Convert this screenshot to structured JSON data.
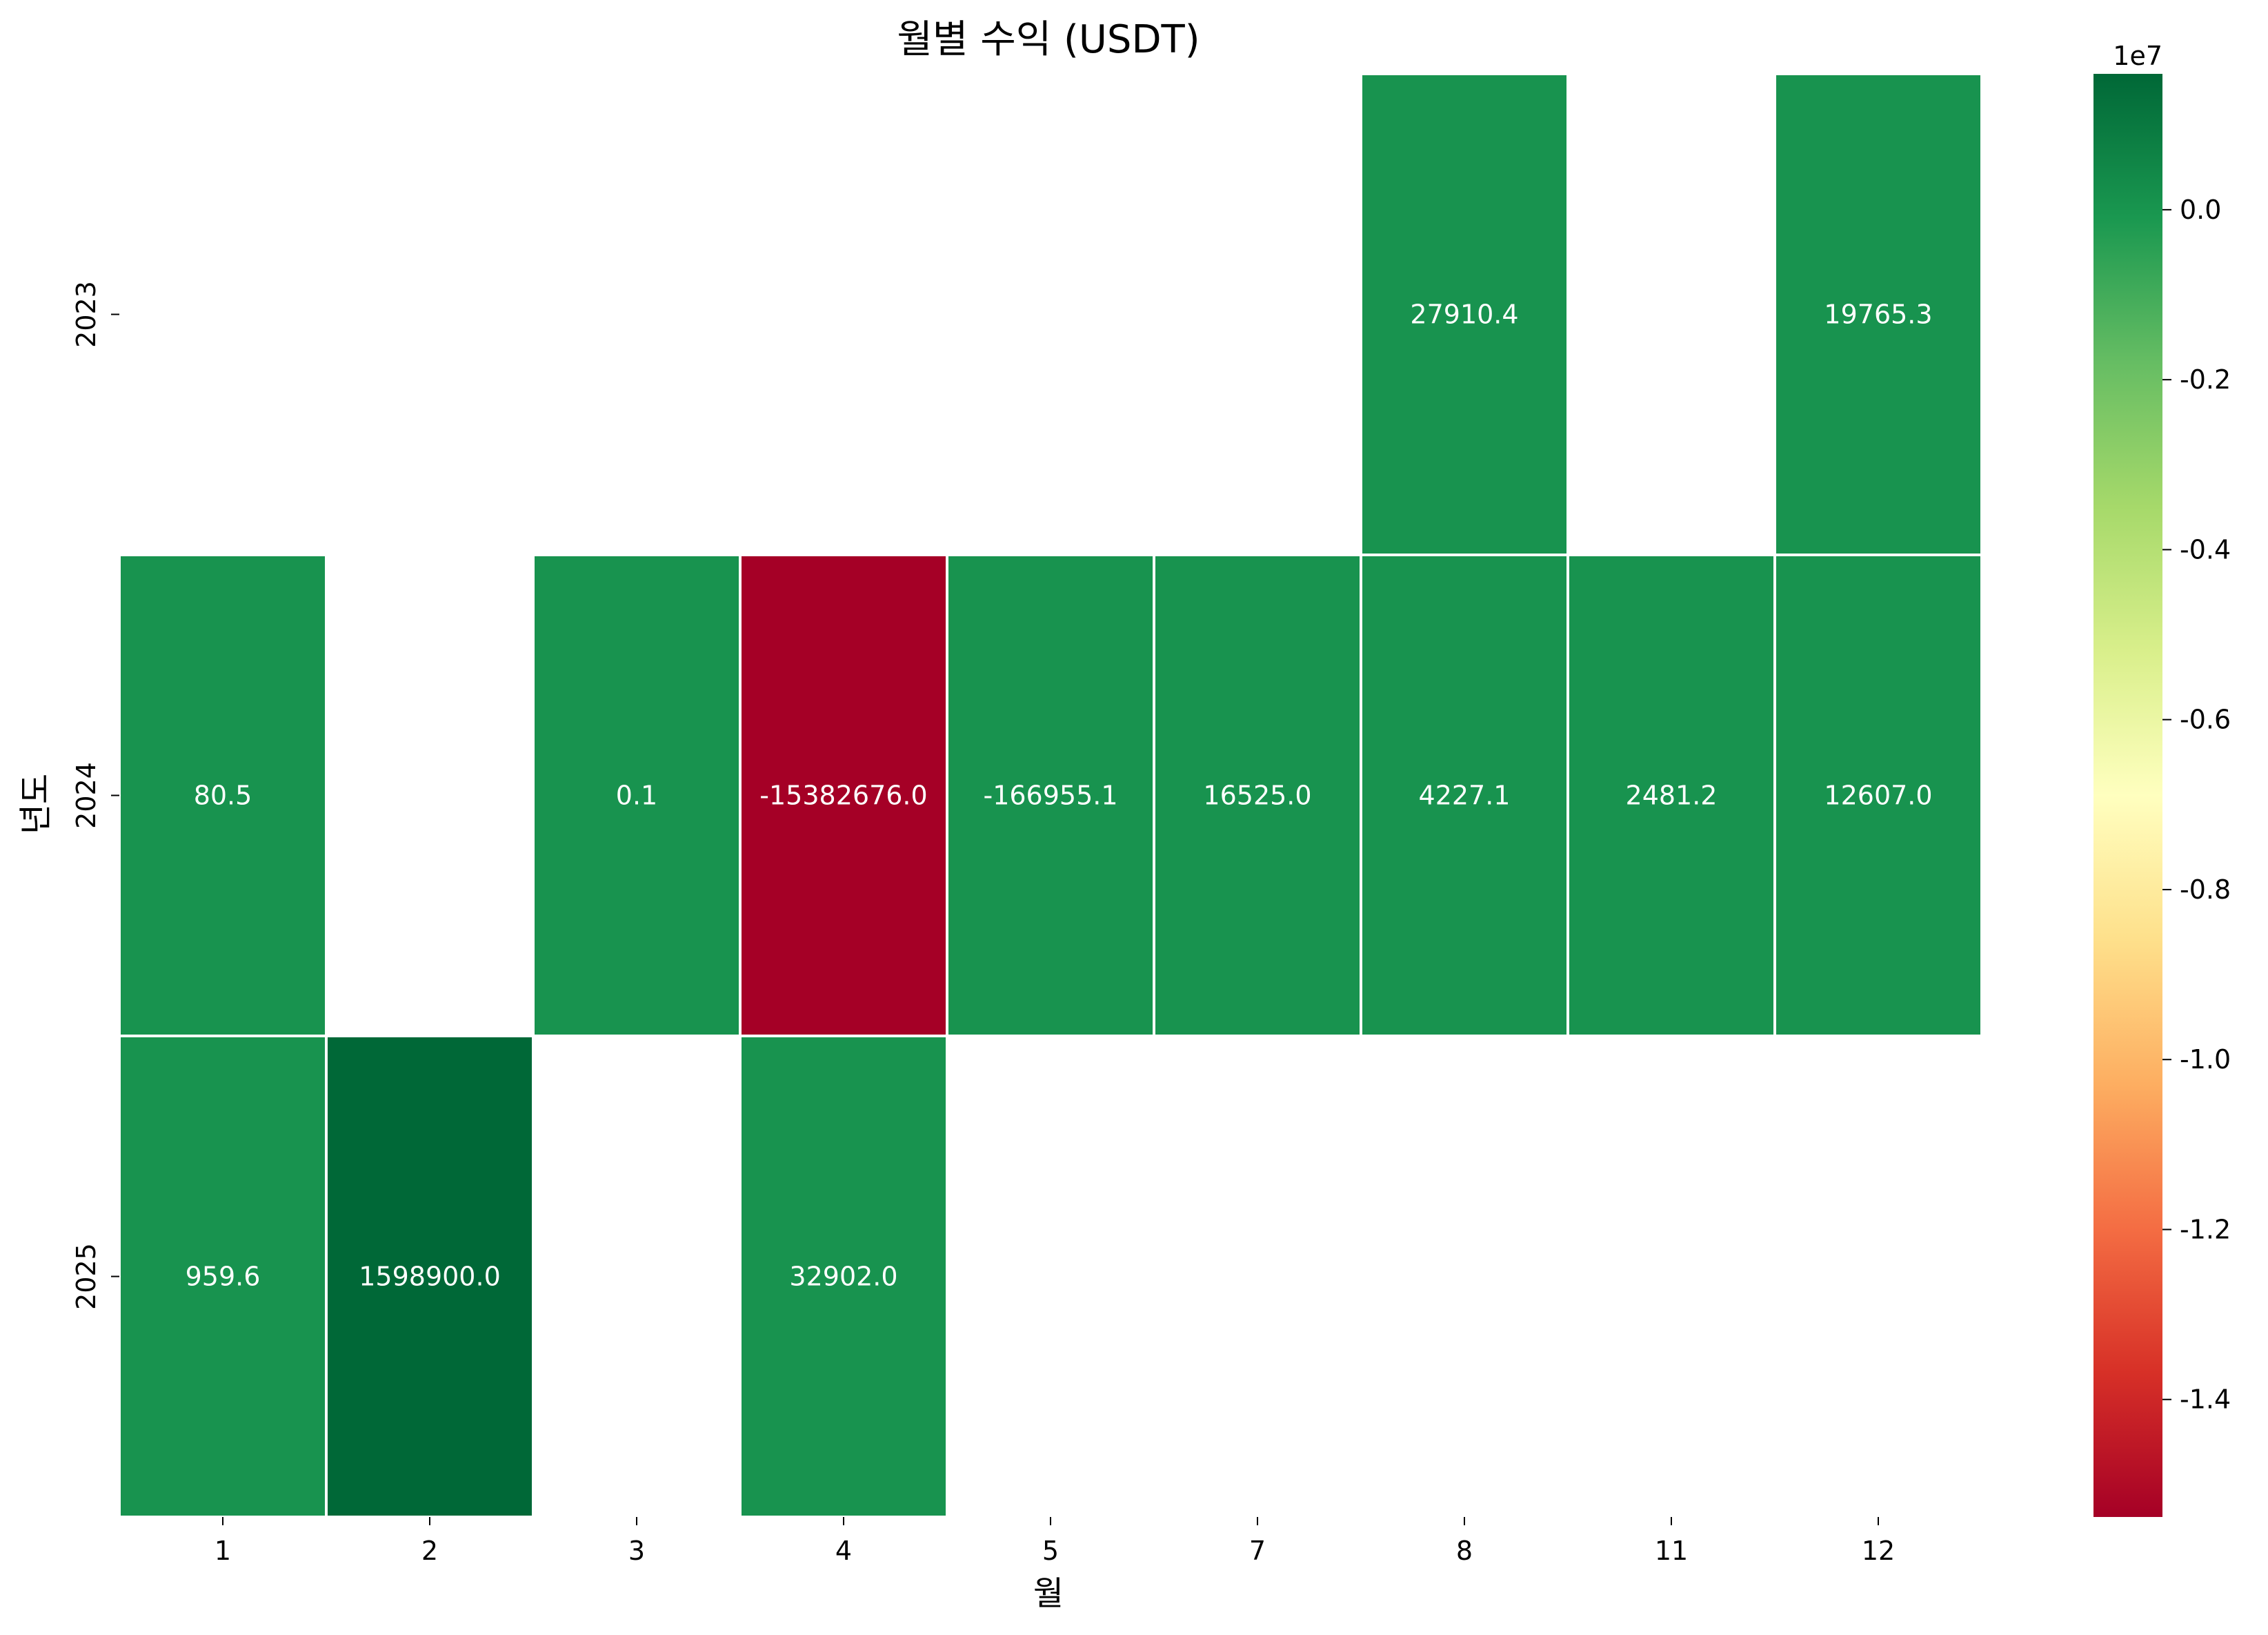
{
  "chart_data": {
    "type": "heatmap",
    "title": "월별 수익 (USDT)",
    "xlabel": "월",
    "ylabel": "년도",
    "x_categories": [
      "1",
      "2",
      "3",
      "4",
      "5",
      "7",
      "8",
      "11",
      "12"
    ],
    "y_categories": [
      "2023",
      "2024",
      "2025"
    ],
    "values": [
      [
        null,
        null,
        null,
        null,
        null,
        null,
        27910.4,
        null,
        19765.3
      ],
      [
        80.5,
        null,
        0.1,
        -15382676.0,
        -166955.1,
        16525.0,
        4227.1,
        2481.2,
        12607.0
      ],
      [
        959.6,
        1598900.0,
        null,
        32902.0,
        null,
        null,
        null,
        null,
        null
      ]
    ],
    "cell_labels": [
      [
        null,
        null,
        null,
        null,
        null,
        null,
        "27910.4",
        null,
        "19765.3"
      ],
      [
        "80.5",
        null,
        "0.1",
        "-15382676.0",
        "-166955.1",
        "16525.0",
        "4227.1",
        "2481.2",
        "12607.0"
      ],
      [
        "959.6",
        "1598900.0",
        null,
        "32902.0",
        null,
        null,
        null,
        null,
        null
      ]
    ],
    "colormap": "RdYlGn",
    "colorbar": {
      "multiplier": "1e7",
      "range": [
        -1.5382676,
        0.15989
      ],
      "ticks": [
        0.0,
        -0.2,
        -0.4,
        -0.6,
        -0.8,
        -1.0,
        -1.2,
        -1.4
      ],
      "tick_labels": [
        "0.0",
        "-0.2",
        "-0.4",
        "-0.6",
        "-0.8",
        "-1.0",
        "-1.2",
        "-1.4"
      ]
    },
    "colors": {
      "cell_green": "#18934f",
      "cell_dark_green": "#006837",
      "cell_red": "#a50026",
      "cell_border": "#ffffff"
    }
  }
}
